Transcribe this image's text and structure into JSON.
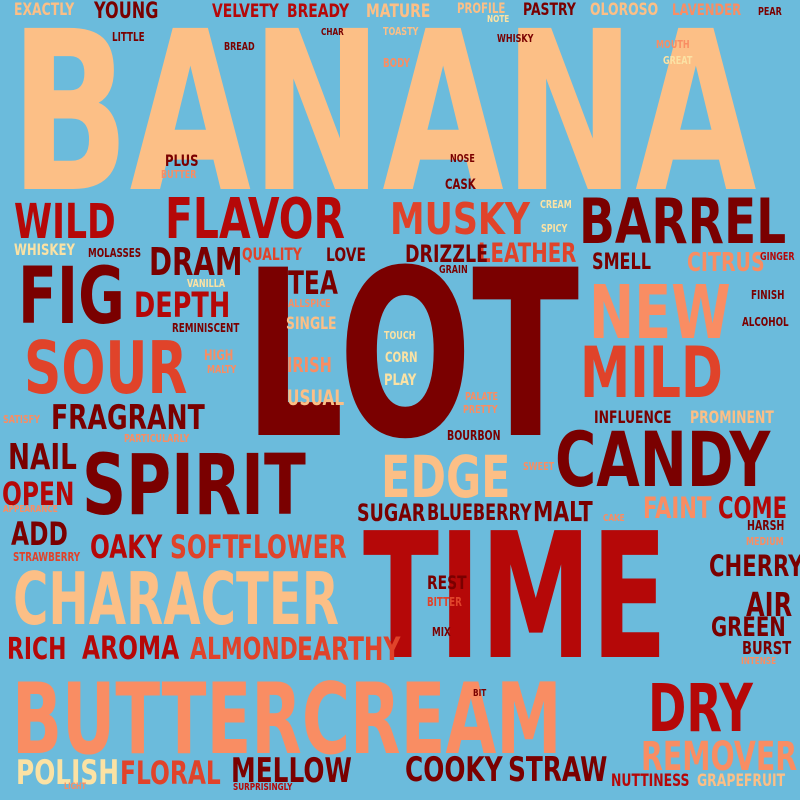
{
  "background": "#6bbbdc",
  "palette": {
    "maroon": "#7a0000",
    "red": "#b50808",
    "vermilion": "#e0432a",
    "salmon": "#f98d63",
    "peach": "#fcbf86",
    "cream": "#fbe2a4"
  },
  "words": [
    "BANANA",
    "LOT",
    "TIME",
    "BUTTERCREAM",
    "SPIRIT",
    "CANDY",
    "CHARACTER",
    "BARREL",
    "FLAVOR",
    "NEW",
    "MILD",
    "FIG",
    "SOUR",
    "MUSKY",
    "WILD",
    "EDGE",
    "DRY",
    "REMOVER",
    "FRAGRANT",
    "DEPTH",
    "DRAM",
    "TEA",
    "NAIL",
    "OPEN",
    "ADD",
    "OAKY",
    "SOFT",
    "FLOWER",
    "AROMA",
    "ALMOND",
    "EARTHY",
    "RICH",
    "POLISH",
    "FLORAL",
    "MELLOW",
    "COOKY",
    "STRAW",
    "CHERRY",
    "AIR",
    "GREEN",
    "BURST",
    "FAINT",
    "COME",
    "SUGAR",
    "BLUEBERRY",
    "MALT",
    "LEATHER",
    "DRIZZLE",
    "LOVE",
    "QUALITY",
    "SMELL",
    "CITRUS",
    "SINGLE",
    "IRISH",
    "USUAL",
    "CORN",
    "PLAY",
    "BOURBON",
    "INFLUENCE",
    "PROMINENT",
    "REST",
    "BITTER",
    "MIX",
    "NUTTINESS",
    "GRAPEFRUIT",
    "EXACTLY",
    "YOUNG",
    "VELVETY",
    "BREADY",
    "MATURE",
    "PROFILE",
    "PASTRY",
    "OLOROSO",
    "LAVENDER",
    "PEAR",
    "LITTLE",
    "BREAD",
    "CHAR",
    "TOASTY",
    "NOTE",
    "WHISKY",
    "MOUTH",
    "GREAT",
    "BODY",
    "PLUS",
    "BUTTER",
    "NOSE",
    "CASK",
    "CREAM",
    "SPICY",
    "WHISKEY",
    "MOLASSES",
    "GRAIN",
    "GINGER",
    "VANILLA",
    "FINISH",
    "ALLSPICE",
    "ALCOHOL",
    "REMINISCENT",
    "TOUCH",
    "HIGH",
    "MALTY",
    "PALATE",
    "PRETTY",
    "SATISFY",
    "PARTICULARLY",
    "SWEET",
    "APPEARANCE",
    "CAKE",
    "HARSH",
    "MEDIUM",
    "STRAWBERRY",
    "INTENSE",
    "BIT",
    "LIGHT",
    "SURPRISINGLY"
  ]
}
